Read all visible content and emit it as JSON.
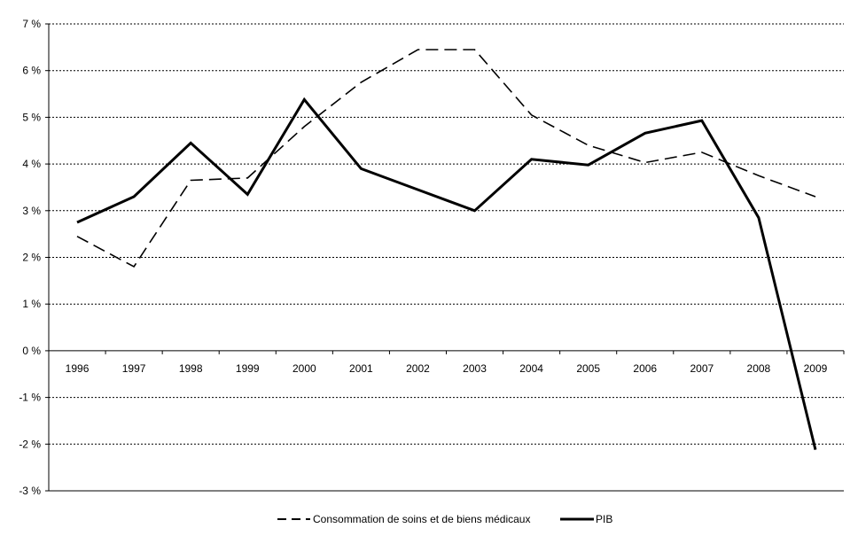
{
  "chart_data": {
    "type": "line",
    "categories": [
      "1996",
      "1997",
      "1998",
      "1999",
      "2000",
      "2001",
      "2002",
      "2003",
      "2004",
      "2005",
      "2006",
      "2007",
      "2008",
      "2009"
    ],
    "series": [
      {
        "name": "Consommation de soins et de biens médicaux",
        "style": "dashed",
        "color": "#000000",
        "values": [
          2.45,
          1.8,
          3.65,
          3.7,
          4.8,
          5.75,
          6.45,
          6.45,
          5.05,
          4.4,
          4.03,
          4.25,
          3.75,
          3.3
        ]
      },
      {
        "name": "PIB",
        "style": "solid",
        "color": "#000000",
        "values": [
          2.75,
          3.3,
          4.45,
          3.35,
          5.38,
          3.9,
          3.45,
          3.0,
          4.1,
          3.98,
          4.66,
          4.93,
          2.85,
          -2.12
        ]
      }
    ],
    "yticks": [
      "7 %",
      "6 %",
      "5 %",
      "4 %",
      "3 %",
      "2 %",
      "1 %",
      "0 %",
      "-1 %",
      "-2 %",
      "-3 %"
    ],
    "ylim": [
      -3,
      7
    ],
    "grid": true,
    "legend_position": "bottom"
  }
}
